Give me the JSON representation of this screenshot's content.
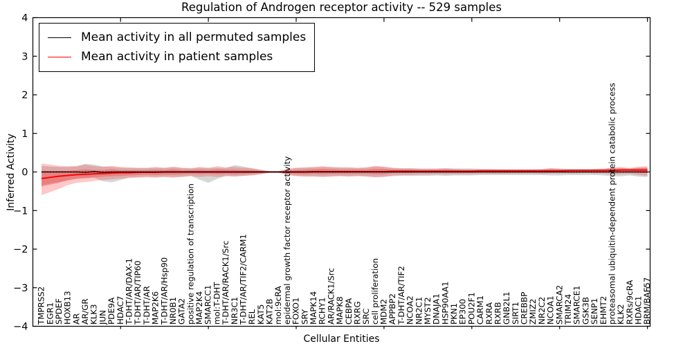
{
  "chart_data": {
    "type": "line",
    "title": "Regulation of Androgen receptor activity -- 529 samples",
    "xlabel": "Cellular Entities",
    "ylabel": "Inferred Activity",
    "ylim": [
      -4,
      4
    ],
    "yticks": [
      4,
      3,
      2,
      1,
      0,
      -1,
      -2,
      -3,
      -4
    ],
    "grid": false,
    "legend_position": "upper left",
    "categories": [
      "TMPRSS2",
      "EGR1",
      "SPDEF",
      "HOXB13",
      "AR",
      "AR/GR",
      "KLK3",
      "JUN",
      "PDE9A",
      "HDAC7",
      "T-DHT/AR/DAX-1",
      "T-DHT/AR/TIP60",
      "T-DHT/AR",
      "MAP2K6",
      "T-DHT/AR/Hsp90",
      "NR0B1",
      "GATA2",
      "positive regulation of transcription",
      "MAP2K4",
      "SMARCC1",
      "mol:T-DHT",
      "T-DHT/AR/RACK1/Src",
      "NR3C1",
      "T-DHT/AR/TIF2/CARM1",
      "REL",
      "KAT5",
      "KAT2B",
      "mol:9cRA",
      "epidermal growth factor receptor activity",
      "FOXO1",
      "SRY",
      "MAPK14",
      "RCHY1",
      "AR/RACK1/Src",
      "MAPK8",
      "CEBPA",
      "RXRG",
      "SRC",
      "cell proliferation",
      "MDM2",
      "APPBP2",
      "T-DHT/AR/TIF2",
      "NCOA2",
      "NR2C1",
      "MYST2",
      "DNAJA1",
      "HSP90AA1",
      "PKN1",
      "EP300",
      "POU2F1",
      "CARM1",
      "RXRA",
      "RXRB",
      "GNB2L1",
      "SIRT1",
      "CREBBP",
      "ZMIZ2",
      "NR2C2",
      "NCOA1",
      "SMARCA2",
      "TRIM24",
      "SMARCE1",
      "GSK3B",
      "SENP1",
      "EHMT2",
      "proteasomal ubiquitin-dependent protein catabolic process",
      "KLK2",
      "RXRs/9cRA",
      "HDAC1",
      "BRM/BAF57"
    ],
    "series": [
      {
        "name": "Mean activity in all permuted samples",
        "color": "#000000",
        "values": [
          0,
          0,
          0,
          0,
          0,
          -0.01,
          0.01,
          -0.01,
          0,
          0,
          0,
          0,
          0,
          0,
          0,
          0,
          0,
          0,
          0,
          0,
          0,
          0,
          0,
          0,
          0,
          0,
          0,
          0,
          0,
          0,
          0,
          0,
          0,
          0,
          0,
          0,
          0,
          0,
          0,
          0,
          0,
          0,
          0,
          0,
          0,
          0,
          0,
          0,
          0,
          0,
          0,
          0,
          0,
          0,
          0,
          0,
          0,
          0,
          0,
          0,
          0,
          0,
          0,
          0,
          0,
          0,
          0,
          0,
          0,
          0
        ]
      },
      {
        "name": "Mean activity in patient samples",
        "color": "#ff0000",
        "values": [
          -0.17,
          -0.14,
          -0.11,
          -0.09,
          -0.07,
          -0.06,
          -0.05,
          -0.04,
          -0.03,
          -0.02,
          -0.02,
          -0.01,
          -0.01,
          -0.01,
          0,
          0,
          0,
          0,
          0,
          0,
          0,
          0,
          0,
          0,
          0,
          0,
          0,
          0,
          0,
          0,
          0,
          0.01,
          0.01,
          0.01,
          0.01,
          0.01,
          0.01,
          0.01,
          0.01,
          0.01,
          0.02,
          0.02,
          0.02,
          0.02,
          0.02,
          0.02,
          0.02,
          0.02,
          0.02,
          0.02,
          0.03,
          0.03,
          0.03,
          0.03,
          0.03,
          0.03,
          0.03,
          0.03,
          0.03,
          0.03,
          0.04,
          0.04,
          0.04,
          0.04,
          0.04,
          0.04,
          0.05,
          0.05,
          0.05,
          0.05
        ]
      }
    ],
    "bands": [
      {
        "name": "permuted samples range",
        "color": "#999999",
        "opacity": 0.4,
        "lower": [
          -0.35,
          -0.3,
          -0.26,
          -0.22,
          -0.18,
          -0.16,
          -0.15,
          -0.24,
          -0.27,
          -0.21,
          -0.14,
          -0.13,
          -0.12,
          -0.13,
          -0.12,
          -0.13,
          -0.12,
          -0.1,
          -0.2,
          -0.28,
          -0.18,
          -0.1,
          -0.11,
          -0.1,
          -0.08,
          -0.05,
          -0.02,
          -0.02,
          -0.07,
          -0.1,
          -0.11,
          -0.11,
          -0.12,
          -0.11,
          -0.1,
          -0.11,
          -0.1,
          -0.11,
          -0.13,
          -0.12,
          -0.11,
          -0.1,
          -0.1,
          -0.1,
          -0.1,
          -0.09,
          -0.1,
          -0.09,
          -0.09,
          -0.09,
          -0.08,
          -0.08,
          -0.08,
          -0.08,
          -0.08,
          -0.08,
          -0.08,
          -0.08,
          -0.09,
          -0.09,
          -0.08,
          -0.08,
          -0.08,
          -0.08,
          -0.09,
          -0.11,
          -0.11,
          -0.09,
          -0.12,
          -0.13
        ],
        "upper": [
          0.16,
          0.14,
          0.13,
          0.13,
          0.14,
          0.21,
          0.19,
          0.14,
          0.13,
          0.11,
          0.1,
          0.1,
          0.1,
          0.11,
          0.1,
          0.12,
          0.1,
          0.09,
          0.11,
          0.1,
          0.11,
          0.1,
          0.18,
          0.14,
          0.09,
          0.05,
          0.02,
          0.02,
          0.07,
          0.1,
          0.11,
          0.12,
          0.13,
          0.12,
          0.11,
          0.11,
          0.1,
          0.11,
          0.14,
          0.13,
          0.11,
          0.1,
          0.1,
          0.09,
          0.09,
          0.09,
          0.1,
          0.09,
          0.09,
          0.09,
          0.08,
          0.08,
          0.08,
          0.08,
          0.08,
          0.08,
          0.08,
          0.08,
          0.09,
          0.09,
          0.08,
          0.08,
          0.08,
          0.08,
          0.09,
          0.1,
          0.1,
          0.09,
          0.11,
          0.12
        ]
      },
      {
        "name": "patient samples range (outer)",
        "color": "#ff2222",
        "opacity": 0.25,
        "lower": [
          -0.6,
          -0.52,
          -0.44,
          -0.34,
          -0.28,
          -0.26,
          -0.23,
          -0.21,
          -0.19,
          -0.17,
          -0.16,
          -0.15,
          -0.14,
          -0.15,
          -0.13,
          -0.15,
          -0.13,
          -0.11,
          -0.13,
          -0.11,
          -0.13,
          -0.11,
          -0.12,
          -0.1,
          -0.09,
          -0.06,
          -0.02,
          -0.02,
          -0.08,
          -0.11,
          -0.12,
          -0.12,
          -0.13,
          -0.12,
          -0.11,
          -0.12,
          -0.11,
          -0.12,
          -0.14,
          -0.13,
          -0.09,
          -0.08,
          -0.08,
          -0.07,
          -0.07,
          -0.06,
          -0.07,
          -0.06,
          -0.06,
          -0.06,
          -0.05,
          -0.05,
          -0.05,
          -0.05,
          -0.05,
          -0.04,
          -0.04,
          -0.05,
          -0.04,
          -0.04,
          -0.04,
          -0.04,
          -0.03,
          -0.04,
          -0.04,
          -0.06,
          -0.06,
          -0.05,
          -0.08,
          -0.1
        ],
        "upper": [
          0.22,
          0.19,
          0.16,
          0.15,
          0.16,
          0.19,
          0.15,
          0.14,
          0.16,
          0.13,
          0.12,
          0.11,
          0.11,
          0.13,
          0.11,
          0.14,
          0.11,
          0.1,
          0.13,
          0.11,
          0.15,
          0.12,
          0.13,
          0.11,
          0.1,
          0.06,
          0.02,
          0.02,
          0.08,
          0.11,
          0.12,
          0.13,
          0.15,
          0.13,
          0.12,
          0.12,
          0.11,
          0.12,
          0.16,
          0.14,
          0.1,
          0.09,
          0.09,
          0.08,
          0.08,
          0.08,
          0.09,
          0.08,
          0.07,
          0.07,
          0.07,
          0.07,
          0.06,
          0.06,
          0.06,
          0.06,
          0.06,
          0.07,
          0.1,
          0.08,
          0.06,
          0.06,
          0.06,
          0.07,
          0.08,
          0.12,
          0.13,
          0.1,
          0.14,
          0.15
        ]
      },
      {
        "name": "patient samples range (inner)",
        "color": "#ff2222",
        "opacity": 0.3,
        "lower": [
          -0.38,
          -0.33,
          -0.28,
          -0.21,
          -0.17,
          -0.16,
          -0.14,
          -0.12,
          -0.11,
          -0.1,
          -0.09,
          -0.08,
          -0.07,
          -0.08,
          -0.07,
          -0.07,
          -0.06,
          -0.05,
          -0.06,
          -0.05,
          -0.06,
          -0.05,
          -0.06,
          -0.05,
          -0.04,
          -0.03,
          -0.01,
          -0.01,
          -0.04,
          -0.05,
          -0.06,
          -0.05,
          -0.06,
          -0.05,
          -0.05,
          -0.05,
          -0.05,
          -0.05,
          -0.06,
          -0.06,
          -0.03,
          -0.03,
          -0.03,
          -0.02,
          -0.02,
          -0.02,
          -0.02,
          -0.02,
          -0.02,
          -0.02,
          -0.01,
          -0.01,
          -0.01,
          -0.01,
          -0.01,
          -0.01,
          -0.01,
          -0.01,
          -0.01,
          -0.01,
          0,
          0,
          0.01,
          0,
          0,
          -0.01,
          -0.01,
          0,
          -0.02,
          -0.03
        ],
        "upper": [
          0.03,
          0.03,
          0.03,
          0.03,
          0.05,
          0.07,
          0.05,
          0.05,
          0.07,
          0.05,
          0.05,
          0.05,
          0.05,
          0.06,
          0.05,
          0.07,
          0.05,
          0.05,
          0.06,
          0.05,
          0.07,
          0.06,
          0.06,
          0.05,
          0.05,
          0.03,
          0.01,
          0.01,
          0.04,
          0.05,
          0.06,
          0.07,
          0.08,
          0.07,
          0.06,
          0.06,
          0.06,
          0.06,
          0.08,
          0.08,
          0.06,
          0.06,
          0.06,
          0.05,
          0.05,
          0.05,
          0.06,
          0.05,
          0.05,
          0.05,
          0.05,
          0.05,
          0.05,
          0.05,
          0.05,
          0.05,
          0.05,
          0.05,
          0.07,
          0.06,
          0.05,
          0.05,
          0.05,
          0.06,
          0.06,
          0.08,
          0.09,
          0.08,
          0.1,
          0.1
        ]
      }
    ]
  }
}
